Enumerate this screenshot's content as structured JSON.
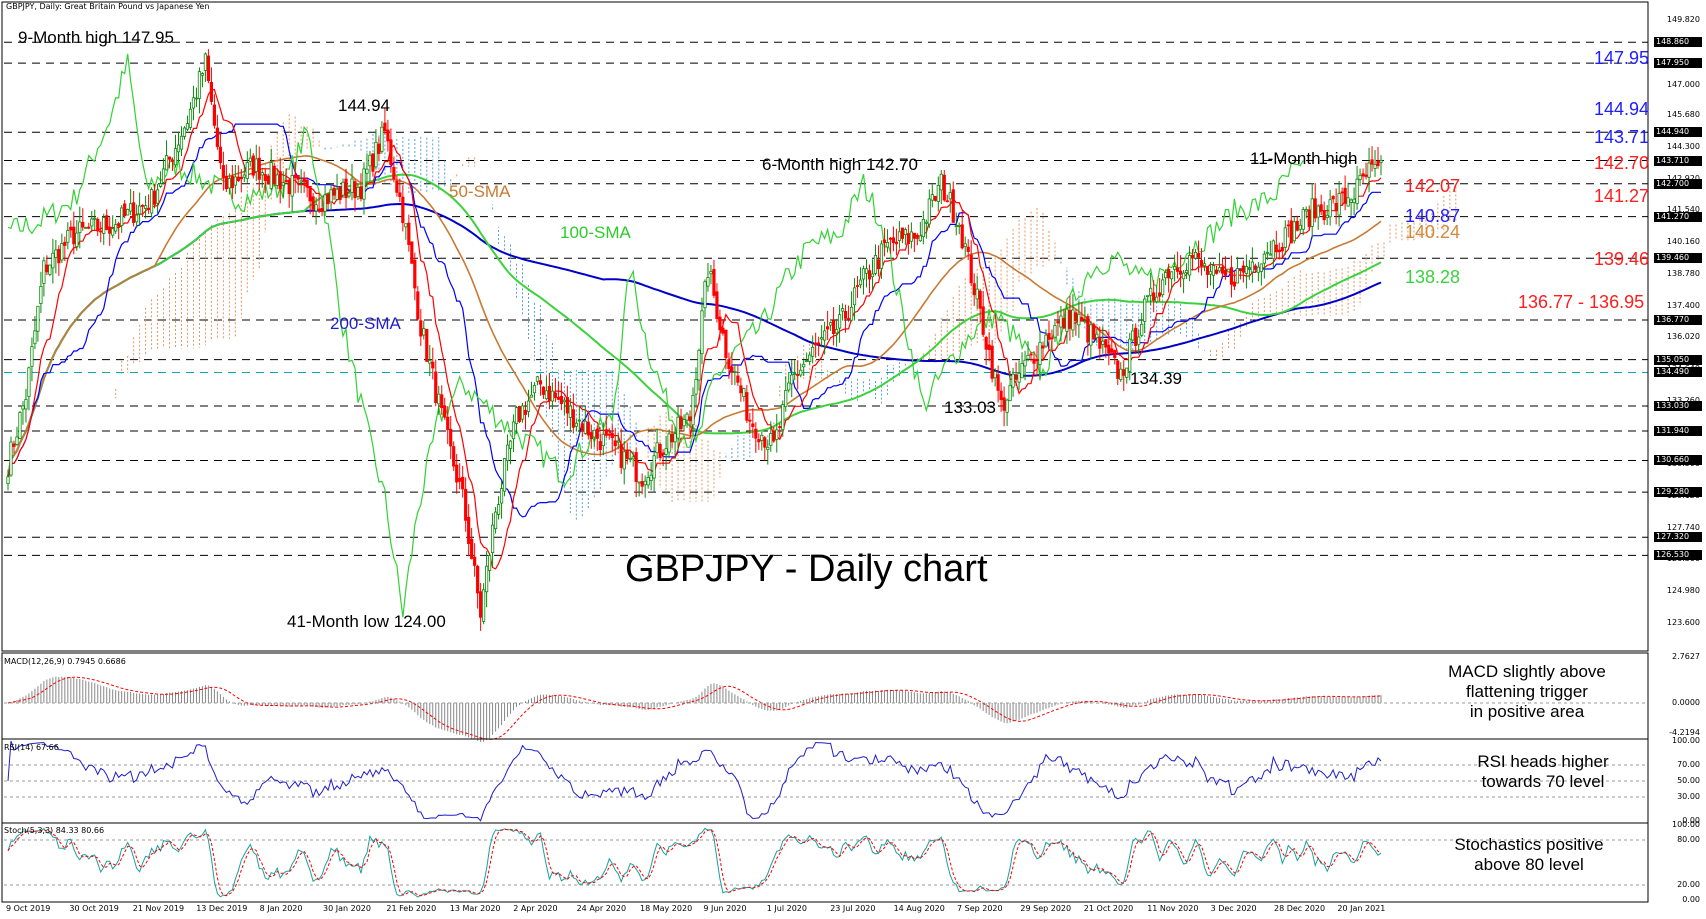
{
  "header": {
    "symbol": "GBPJPY, Daily:",
    "description": "Great Britain Pound vs Japanese Yen"
  },
  "chart_data": {
    "type": "candlestick",
    "title": "GBPJPY - Daily chart",
    "ylim": [
      122.5,
      150.0
    ],
    "price_axis_ticks": [
      "149.820",
      "147.000",
      "145.680",
      "144.300",
      "142.920",
      "141.540",
      "140.160",
      "138.780",
      "137.400",
      "136.020",
      "134.640",
      "133.260",
      "131.880",
      "130.500",
      "129.120",
      "127.740",
      "126.360",
      "124.980",
      "123.600"
    ],
    "highlighted_levels": [
      "148.860",
      "147.950",
      "144.940",
      "143.710",
      "142.700",
      "141.270",
      "139.460",
      "136.770",
      "135.050",
      "134.490",
      "133.030",
      "131.940",
      "130.660",
      "129.280",
      "127.320",
      "126.530"
    ],
    "x_labels": [
      "9 Oct 2019",
      "30 Oct 2019",
      "21 Nov 2019",
      "13 Dec 2019",
      "8 Jan 2020",
      "30 Jan 2020",
      "21 Feb 2020",
      "13 Mar 2020",
      "2 Apr 2020",
      "24 Apr 2020",
      "18 May 2020",
      "9 Jun 2020",
      "1 Jul 2020",
      "23 Jul 2020",
      "14 Aug 2020",
      "7 Sep 2020",
      "29 Sep 2020",
      "21 Oct 2020",
      "11 Nov 2020",
      "3 Dec 2020",
      "28 Dec 2020",
      "20 Jan 2021"
    ],
    "price_anchors": [
      [
        0,
        130.5
      ],
      [
        6,
        133.5
      ],
      [
        12,
        139.0
      ],
      [
        22,
        140.5
      ],
      [
        36,
        141.0
      ],
      [
        48,
        142.0
      ],
      [
        60,
        145.5
      ],
      [
        66,
        147.95
      ],
      [
        72,
        142.5
      ],
      [
        82,
        143.5
      ],
      [
        92,
        142.8
      ],
      [
        104,
        142.0
      ],
      [
        118,
        142.6
      ],
      [
        126,
        144.94
      ],
      [
        132,
        141.5
      ],
      [
        138,
        136.5
      ],
      [
        146,
        132.0
      ],
      [
        152,
        129.0
      ],
      [
        158,
        124.0
      ],
      [
        163,
        128.5
      ],
      [
        170,
        132.5
      ],
      [
        178,
        134.0
      ],
      [
        186,
        133.0
      ],
      [
        194,
        132.0
      ],
      [
        204,
        131.0
      ],
      [
        212,
        130.0
      ],
      [
        220,
        131.5
      ],
      [
        228,
        132.5
      ],
      [
        234,
        139.0
      ],
      [
        240,
        135.5
      ],
      [
        248,
        132.5
      ],
      [
        256,
        131.2
      ],
      [
        262,
        134.2
      ],
      [
        270,
        135.5
      ],
      [
        278,
        136.5
      ],
      [
        286,
        138.5
      ],
      [
        294,
        140.0
      ],
      [
        304,
        140.5
      ],
      [
        312,
        142.7
      ],
      [
        318,
        141.0
      ],
      [
        326,
        136.5
      ],
      [
        332,
        133.03
      ],
      [
        340,
        134.8
      ],
      [
        348,
        136.2
      ],
      [
        356,
        137.0
      ],
      [
        364,
        135.8
      ],
      [
        372,
        134.39
      ],
      [
        380,
        137.2
      ],
      [
        388,
        139.0
      ],
      [
        396,
        139.5
      ],
      [
        404,
        138.5
      ],
      [
        412,
        138.8
      ],
      [
        420,
        139.8
      ],
      [
        428,
        140.5
      ],
      [
        436,
        141.5
      ],
      [
        444,
        141.8
      ],
      [
        450,
        142.3
      ],
      [
        455,
        143.2
      ]
    ],
    "annotations": {
      "nine_month_high": "9-Month high 147.95",
      "peak_14494": "144.94",
      "six_month_high": "6-Month high 142.70",
      "eleven_month_high": "11-Month high",
      "low_41_month": "41-Month low 124.00",
      "low_13303": "133.03",
      "low_13439": "134.39",
      "sma50": "50-SMA",
      "sma100": "100-SMA",
      "sma200": "200-SMA"
    },
    "level_labels": [
      {
        "text": "147.95",
        "color": "#1e1eff"
      },
      {
        "text": "144.94",
        "color": "#1e1eff"
      },
      {
        "text": "143.71",
        "color": "#1e1eff"
      },
      {
        "text": "142.70",
        "color": "#ff1e1e"
      },
      {
        "text": "141.27",
        "color": "#ff1e1e"
      },
      {
        "text": "142.07",
        "color": "#ff1e1e"
      },
      {
        "text": "140.87",
        "color": "#1e1eff"
      },
      {
        "text": "140.24",
        "color": "#d08a3a"
      },
      {
        "text": "139.46",
        "color": "#ff1e1e"
      },
      {
        "text": "138.28",
        "color": "#3cd23c"
      },
      {
        "text": "136.77 - 136.95",
        "color": "#ff1e1e"
      }
    ],
    "colors": {
      "bull": "#0a8a0a",
      "bear": "#ff0000",
      "tenkan": "#ff0000",
      "kijun": "#0000ff",
      "chikou": "#32d232",
      "sma50": "#c87a32",
      "sma100": "#3cd23c",
      "sma200": "#0000c8",
      "cloud_a": "#e69664",
      "cloud_b": "#5aa0dc",
      "dash": "#000000",
      "cyan": "#00aaaa"
    }
  },
  "macd": {
    "header": "MACD(12,26,9) 0.7945 0.6686",
    "ticks": [
      "2.7627",
      "0.0000",
      "-4.2194"
    ],
    "note": [
      "MACD slightly above",
      "flattening trigger",
      "in positive area"
    ]
  },
  "rsi": {
    "header": "RSI(14) 67.66",
    "ticks": [
      "100.00",
      "70.00",
      "50.00",
      "30.00",
      "0.00"
    ],
    "note": [
      "RSI heads higher",
      "towards 70 level"
    ]
  },
  "stoch": {
    "header": "Stoch(5,3,3) 84.33 80.66",
    "ticks": [
      "100.00",
      "80.00",
      "20.00",
      "0.00"
    ],
    "note": [
      "Stochastics positive",
      "above 80 level"
    ]
  }
}
